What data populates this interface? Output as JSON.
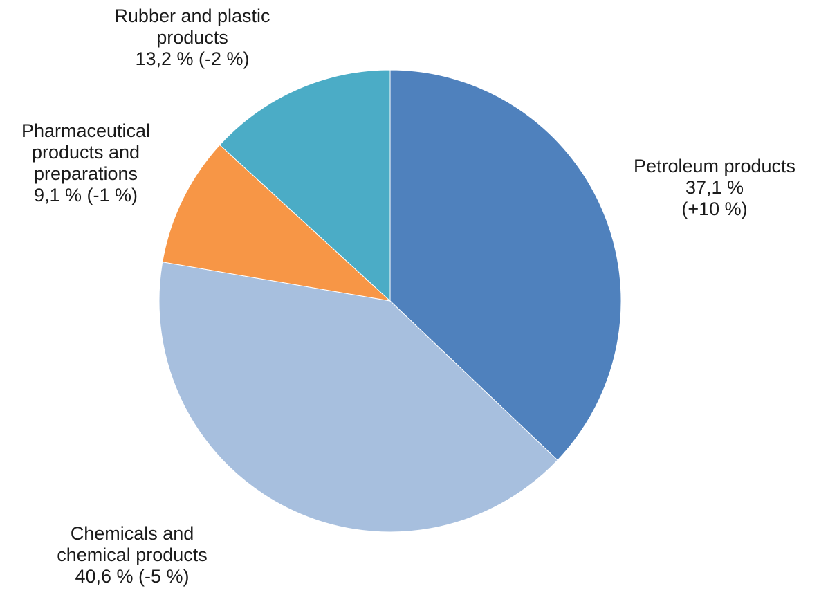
{
  "chart_data": {
    "type": "pie",
    "title": "",
    "start_angle_deg": 0,
    "direction": "clockwise",
    "slices": [
      {
        "name": "Petroleum products",
        "value": 37.1,
        "change": "+10 %",
        "color": "#4F81BD",
        "label_lines": [
          "Petroleum products",
          "37,1 %",
          "(+10 %)"
        ]
      },
      {
        "name": "Chemicals and chemical products",
        "value": 40.6,
        "change": "-5 %",
        "color": "#A7BFDE",
        "label_lines": [
          "Chemicals and",
          "chemical products",
          "40,6 % (-5 %)"
        ]
      },
      {
        "name": "Pharmaceutical products and preparations",
        "value": 9.1,
        "change": "-1 %",
        "color": "#F79646",
        "label_lines": [
          "Pharmaceutical",
          "products and",
          "preparations",
          "9,1 % (-1 %)"
        ]
      },
      {
        "name": "Rubber and plastic products",
        "value": 13.2,
        "change": "-2 %",
        "color": "#4BACC6",
        "label_lines": [
          "Rubber and plastic",
          "products",
          "13,2 % (-2 %)"
        ]
      }
    ]
  }
}
